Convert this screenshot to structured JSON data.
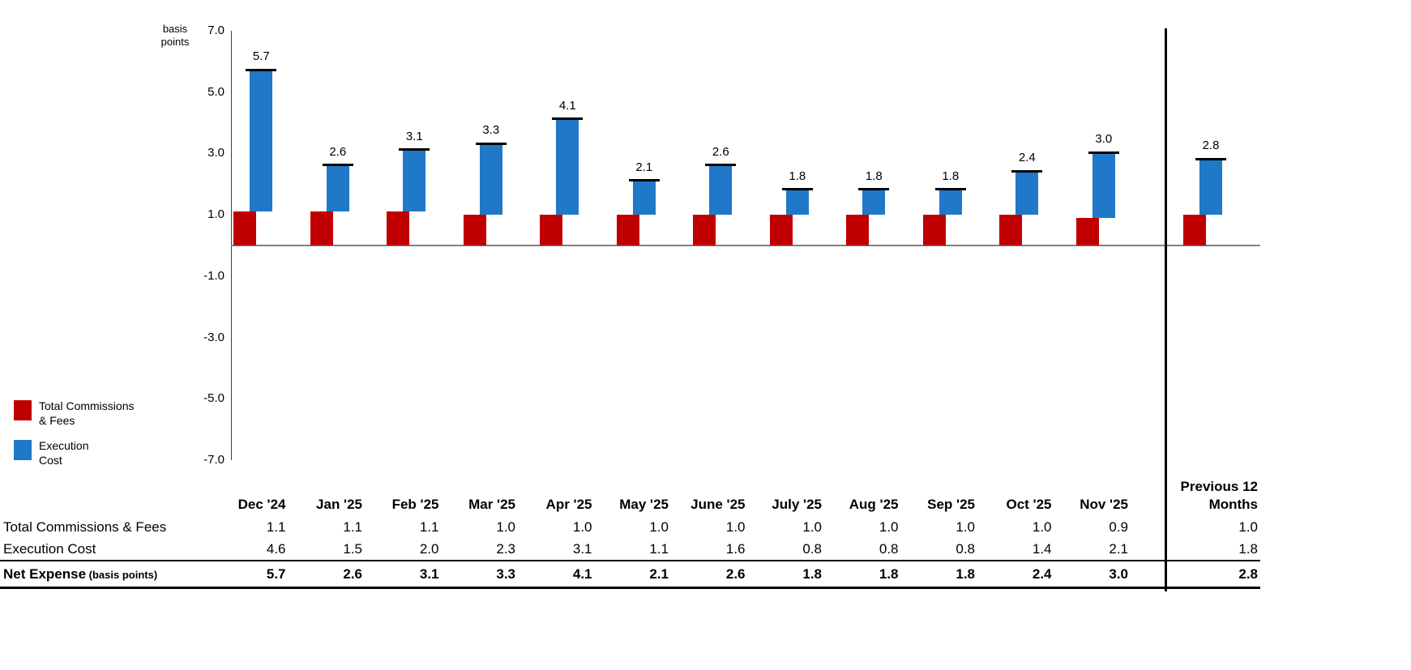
{
  "chart_data": {
    "type": "bar",
    "stacked": true,
    "title": "",
    "xlabel": "",
    "ylabel": "basis points",
    "ylim": [
      -7.0,
      7.0
    ],
    "yticks": [
      7.0,
      5.0,
      3.0,
      1.0,
      -1.0,
      -3.0,
      -5.0,
      -7.0
    ],
    "grid": false,
    "legend_position": "left",
    "categories": [
      "Dec '24",
      "Jan '25",
      "Feb '25",
      "Mar '25",
      "Apr '25",
      "May '25",
      "June '25",
      "July '25",
      "Aug '25",
      "Sep '25",
      "Oct '25",
      "Nov '25",
      "Previous 12 Months"
    ],
    "series": [
      {
        "name": "Total Commissions & Fees",
        "color": "#C00000",
        "values": [
          1.1,
          1.1,
          1.1,
          1.0,
          1.0,
          1.0,
          1.0,
          1.0,
          1.0,
          1.0,
          1.0,
          0.9,
          1.0
        ]
      },
      {
        "name": "Execution Cost",
        "color": "#1F78C8",
        "values": [
          4.6,
          1.5,
          2.0,
          2.3,
          3.1,
          1.1,
          1.6,
          0.8,
          0.8,
          0.8,
          1.4,
          2.1,
          1.8
        ]
      }
    ],
    "totals": [
      5.7,
      2.6,
      3.1,
      3.3,
      4.1,
      2.1,
      2.6,
      1.8,
      1.8,
      1.8,
      2.4,
      3.0,
      2.8
    ],
    "totals_name": "Net Expense"
  },
  "legend": {
    "items": [
      {
        "line1": "Total Commissions",
        "line2": "& Fees",
        "color": "#C00000"
      },
      {
        "line1": "Execution",
        "line2": "Cost",
        "color": "#1F78C8"
      }
    ]
  },
  "table": {
    "corner": "",
    "col_headers": [
      "Dec '24",
      "Jan '25",
      "Feb '25",
      "Mar '25",
      "Apr '25",
      "May '25",
      "June '25",
      "July '25",
      "Aug '25",
      "Sep '25",
      "Oct '25",
      "Nov '25",
      "Previous 12 Months"
    ],
    "rows": [
      {
        "label": "Total Commissions & Fees",
        "note": "",
        "bold": false,
        "values": [
          1.1,
          1.1,
          1.1,
          1.0,
          1.0,
          1.0,
          1.0,
          1.0,
          1.0,
          1.0,
          1.0,
          0.9,
          1.0
        ]
      },
      {
        "label": "Execution Cost",
        "note": "",
        "bold": false,
        "values": [
          4.6,
          1.5,
          2.0,
          2.3,
          3.1,
          1.1,
          1.6,
          0.8,
          0.8,
          0.8,
          1.4,
          2.1,
          1.8
        ]
      },
      {
        "label": "Net Expense",
        "note": "(basis points)",
        "bold": true,
        "values": [
          5.7,
          2.6,
          3.1,
          3.3,
          4.1,
          2.1,
          2.6,
          1.8,
          1.8,
          1.8,
          2.4,
          3.0,
          2.8
        ]
      }
    ]
  }
}
